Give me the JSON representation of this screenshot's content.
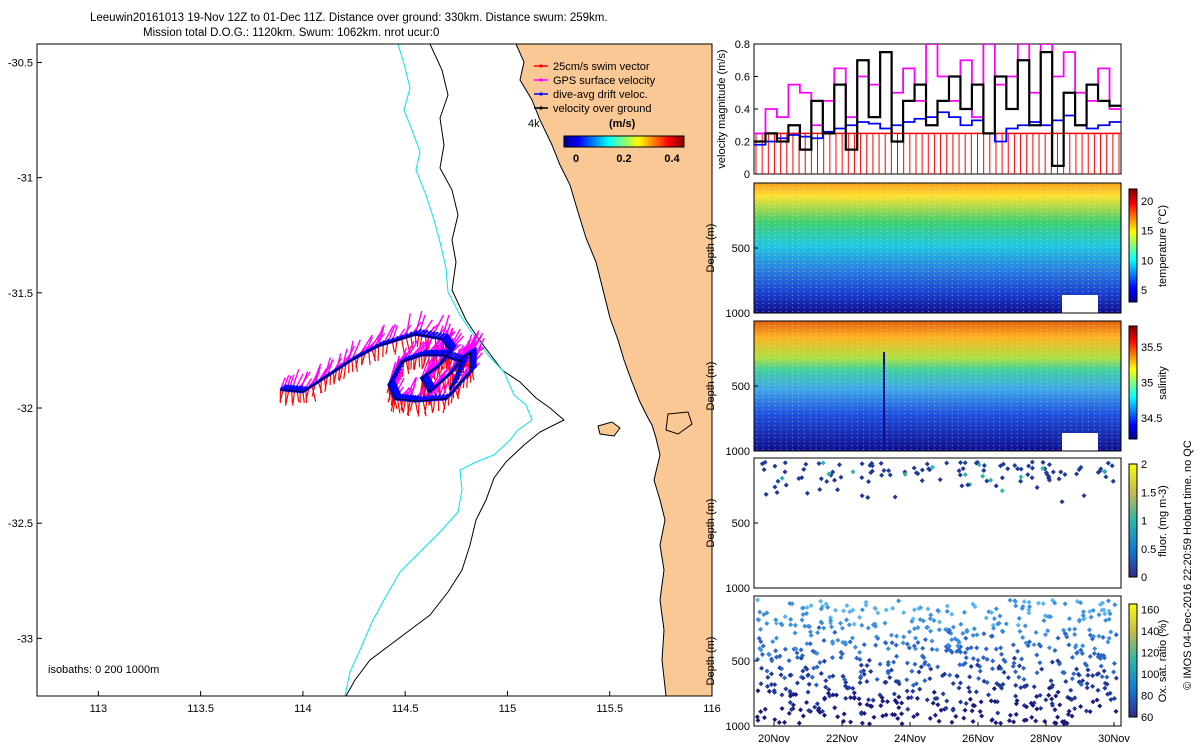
{
  "header": {
    "line1": "Leeuwin20161013 19-Nov 12Z to 01-Dec 11Z. Distance over ground: 330km. Distance swum: 259km.",
    "line2": "Mission total D.O.G.: 1120km. Swum: 1062km. nrot ucur:0"
  },
  "footer_note": "© IMOS 04-Dec-2016 22:20:59 Hobart time. no QC",
  "colors": {
    "land": "#f9c894",
    "isobath_200": "#00e5ee",
    "isobath_1000": "#000000",
    "swim_vector": "#ff0000",
    "gps_velocity": "#ff00ff",
    "drift_velocity": "#0000ff",
    "velocity_over_ground": "#000000"
  },
  "chart_data": [
    {
      "id": "map",
      "type": "scatter",
      "x_ticks": [
        "113",
        "113.5",
        "114",
        "114.5",
        "115",
        "115.5",
        "116"
      ],
      "y_ticks": [
        "-30.5",
        "-31",
        "-31.5",
        "-32",
        "-32.5",
        "-33"
      ],
      "xlim": [
        112.7,
        116
      ],
      "ylim": [
        -33.25,
        -30.42
      ],
      "isobaths_label": "isobaths: 0   200   1000m",
      "depth_label": "4k",
      "legend": {
        "placement": "top-right",
        "entries": [
          {
            "label": "25cm/s swim vector",
            "color": "#ff0000"
          },
          {
            "label": "GPS surface velocity",
            "color": "#ff00ff"
          },
          {
            "label": "dive-avg drift veloc.",
            "color": "#0000ff"
          },
          {
            "label": "velocity over ground",
            "color": "#000000"
          }
        ]
      },
      "colorbar": {
        "title": "(m/s)",
        "ticks": [
          "0",
          "0.2",
          "0.4"
        ],
        "range": [
          0,
          0.5
        ]
      },
      "track": [
        [
          113.89,
          -31.92
        ],
        [
          114.0,
          -31.93
        ],
        [
          114.12,
          -31.86
        ],
        [
          114.24,
          -31.79
        ],
        [
          114.37,
          -31.73
        ],
        [
          114.55,
          -31.68
        ],
        [
          114.68,
          -31.7
        ],
        [
          114.72,
          -31.75
        ],
        [
          114.66,
          -31.82
        ],
        [
          114.58,
          -31.87
        ],
        [
          114.62,
          -31.93
        ],
        [
          114.72,
          -31.85
        ],
        [
          114.78,
          -31.78
        ],
        [
          114.82,
          -31.76
        ],
        [
          114.82,
          -31.84
        ],
        [
          114.7,
          -31.96
        ],
        [
          114.55,
          -31.97
        ],
        [
          114.45,
          -31.96
        ],
        [
          114.42,
          -31.9
        ],
        [
          114.48,
          -31.8
        ],
        [
          114.58,
          -31.77
        ],
        [
          114.68,
          -31.77
        ],
        [
          114.78,
          -31.8
        ],
        [
          114.72,
          -31.92
        ]
      ]
    },
    {
      "id": "velocity",
      "type": "line",
      "ylabel": "velocity magnitude (m/s)",
      "ylim": [
        0,
        0.8
      ],
      "y_ticks": [
        "0",
        "0.2",
        "0.4",
        "0.6",
        "0.8"
      ],
      "x_ticks": [
        "20Nov",
        "22Nov",
        "24Nov",
        "26Nov",
        "28Nov",
        "30Nov"
      ],
      "series": [
        {
          "color": "#ff00ff",
          "values": [
            0.25,
            0.4,
            0.35,
            0.55,
            0.5,
            0.3,
            0.45,
            0.65,
            0.35,
            0.6,
            0.55,
            0.75,
            0.5,
            0.65,
            0.45,
            0.8,
            0.6,
            0.45,
            0.7,
            0.35,
            0.8,
            0.55,
            0.6,
            0.8,
            0.5,
            0.8,
            0.6,
            0.75,
            0.5,
            0.45,
            0.65,
            0.4
          ]
        },
        {
          "color": "#0000ff",
          "values": [
            0.18,
            0.2,
            0.22,
            0.24,
            0.23,
            0.22,
            0.26,
            0.28,
            0.3,
            0.32,
            0.31,
            0.28,
            0.3,
            0.32,
            0.34,
            0.35,
            0.38,
            0.35,
            0.3,
            0.33,
            0.25,
            0.2,
            0.28,
            0.3,
            0.32,
            0.3,
            0.33,
            0.36,
            0.3,
            0.28,
            0.3,
            0.32
          ]
        },
        {
          "color": "#000000",
          "values": [
            0.2,
            0.25,
            0.2,
            0.3,
            0.15,
            0.45,
            0.25,
            0.55,
            0.15,
            0.7,
            0.35,
            0.75,
            0.2,
            0.45,
            0.55,
            0.3,
            0.45,
            0.6,
            0.4,
            0.55,
            0.25,
            0.6,
            0.4,
            0.7,
            0.3,
            0.75,
            0.05,
            0.5,
            0.3,
            0.55,
            0.45,
            0.42
          ]
        },
        {
          "color": "#ff0000",
          "values": [
            0.25,
            0.25,
            0.25,
            0.25,
            0.25,
            0.25,
            0.25,
            0.25,
            0.25,
            0.25,
            0.25,
            0.25,
            0.25,
            0.25,
            0.25,
            0.25,
            0.25,
            0.25,
            0.25,
            0.25,
            0.25,
            0.25,
            0.25,
            0.25,
            0.25,
            0.25,
            0.25,
            0.25,
            0.25,
            0.25,
            0.25,
            0.25
          ]
        }
      ]
    },
    {
      "id": "temperature",
      "type": "heatmap",
      "ylabel": "Depth (m)",
      "y_ticks": [
        "500",
        "1000"
      ],
      "ylim": [
        0,
        1000
      ],
      "colorbar_label": "temperature (°C)",
      "colorbar_ticks": [
        "20",
        "15",
        "10",
        "5"
      ],
      "colorbar_range": [
        3,
        22
      ]
    },
    {
      "id": "salinity",
      "type": "heatmap",
      "ylabel": "Depth (m)",
      "y_ticks": [
        "500",
        "1000"
      ],
      "ylim": [
        0,
        1000
      ],
      "colorbar_label": "salinity",
      "colorbar_ticks": [
        "35.5",
        "35",
        "34.5"
      ],
      "colorbar_range": [
        34.2,
        35.8
      ]
    },
    {
      "id": "fluorescence",
      "type": "scatter",
      "ylabel": "Depth (m)",
      "y_ticks": [
        "500",
        "1000"
      ],
      "ylim": [
        0,
        1000
      ],
      "colorbar_label": "fluor. (mg m-3)",
      "colorbar_ticks": [
        "2",
        "1.5",
        "1",
        "0.5",
        "0"
      ],
      "colorbar_range": [
        0,
        2
      ]
    },
    {
      "id": "oxygen",
      "type": "heatmap",
      "ylabel": "Depth (m)",
      "y_ticks": [
        "500",
        "1000"
      ],
      "ylim": [
        0,
        1000
      ],
      "x_ticks": [
        "20Nov",
        "22Nov",
        "24Nov",
        "26Nov",
        "28Nov",
        "30Nov"
      ],
      "colorbar_label": "Ox. sat. ratio (%)",
      "colorbar_ticks": [
        "160",
        "140",
        "120",
        "100",
        "80",
        "60"
      ],
      "colorbar_range": [
        60,
        165
      ]
    }
  ]
}
